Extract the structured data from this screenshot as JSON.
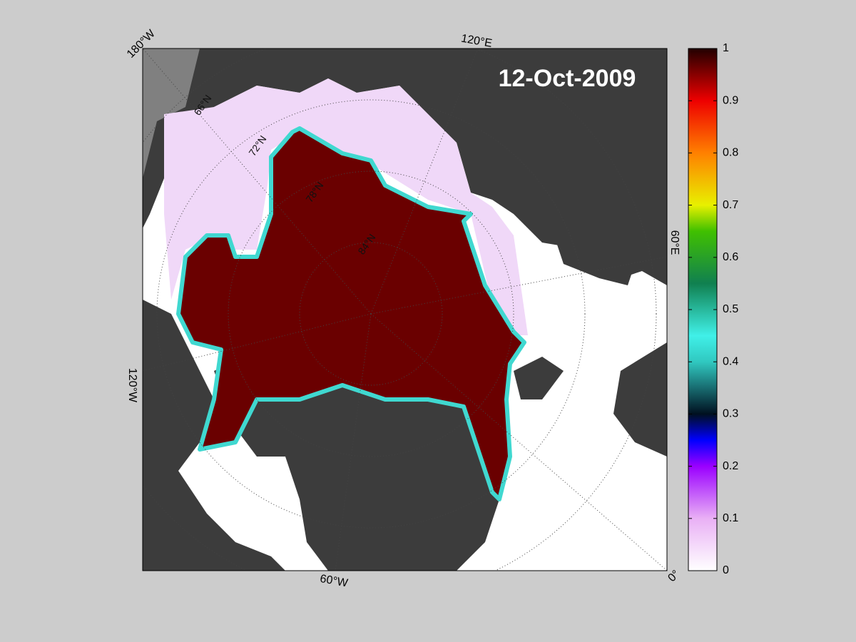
{
  "date": "12-Oct-2009",
  "longitude_labels": [
    "180°W",
    "120°E",
    "60°E",
    "0°",
    "60°W",
    "120°W"
  ],
  "latitude_labels": [
    "66°N",
    "72°N",
    "78°N",
    "84°N"
  ],
  "colorbar": {
    "ticks": [
      0,
      0.1,
      0.2,
      0.3,
      0.4,
      0.5,
      0.6,
      0.7,
      0.8,
      0.9,
      1
    ],
    "range": [
      0,
      1
    ]
  }
}
